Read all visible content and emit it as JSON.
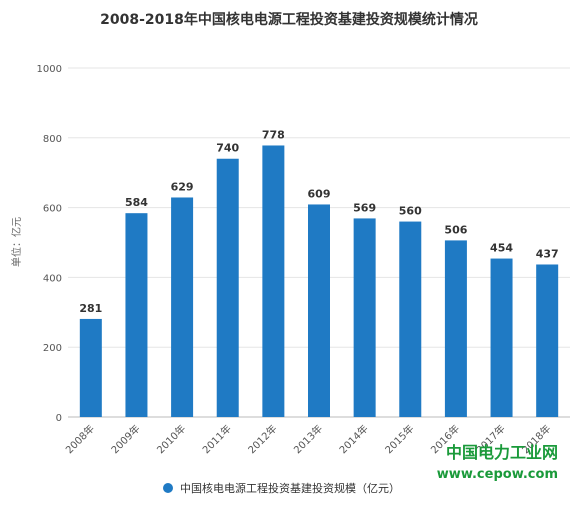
{
  "chart_data": {
    "type": "bar",
    "title": "2008-2018年中国核电电源工程投资基建投资规模统计情况",
    "ylabel": "单位：亿元",
    "xlabel": "",
    "categories": [
      "2008年",
      "2009年",
      "2010年",
      "2011年",
      "2012年",
      "2013年",
      "2014年",
      "2015年",
      "2016年",
      "2017年",
      "2018年"
    ],
    "series": [
      {
        "name": "中国核电电源工程投资基建投资规模（亿元）",
        "values": [
          281,
          584,
          629,
          740,
          778,
          609,
          569,
          560,
          506,
          454,
          437
        ]
      }
    ],
    "ylim": [
      0,
      1000
    ],
    "yticks": [
      0,
      200,
      400,
      600,
      800,
      1000
    ],
    "grid": true,
    "legend_position": "bottom",
    "bar_color": "#1f7ac4"
  },
  "watermark": {
    "cn": "中国电力工业网",
    "url": "www.cepow.com",
    "color": "#1a9a3a"
  }
}
